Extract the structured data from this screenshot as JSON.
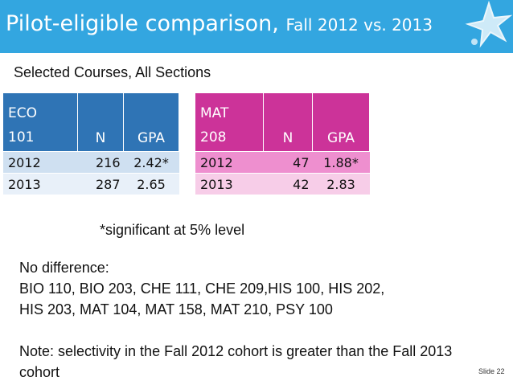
{
  "title": {
    "main": "Pilot-eligible comparison, ",
    "sub": "Fall 2012 vs. 2013"
  },
  "subtitle": "Selected Courses, All Sections",
  "tables": {
    "eco": {
      "course_line1": "ECO",
      "course_line2": "101",
      "n_header": "N",
      "gpa_header": "GPA",
      "rows": [
        {
          "year": "2012",
          "n": "216",
          "gpa": "2.42*"
        },
        {
          "year": "2013",
          "n": "287",
          "gpa": "2.65"
        }
      ]
    },
    "mat": {
      "course_line1": "MAT",
      "course_line2": "208",
      "n_header": "N",
      "gpa_header": "GPA",
      "rows": [
        {
          "year": "2012",
          "n": "47",
          "gpa": "1.88*"
        },
        {
          "year": "2013",
          "n": "42",
          "gpa": "2.83"
        }
      ]
    }
  },
  "footnote": "*significant at 5% level",
  "no_difference": {
    "heading": "No difference:",
    "line1": "BIO 110, BIO 203, CHE 111, CHE 209,HIS 100, HIS 202,",
    "line2": "HIS 203, MAT 104, MAT 158, MAT 210, PSY 100"
  },
  "note": "Note: selectivity in the Fall 2012 cohort is greater than the Fall 2013 cohort",
  "slide_number": "Slide 22",
  "colors": {
    "title_bar": "#33a6e0",
    "eco_header": "#2f74b5",
    "mat_header": "#cc3399"
  }
}
